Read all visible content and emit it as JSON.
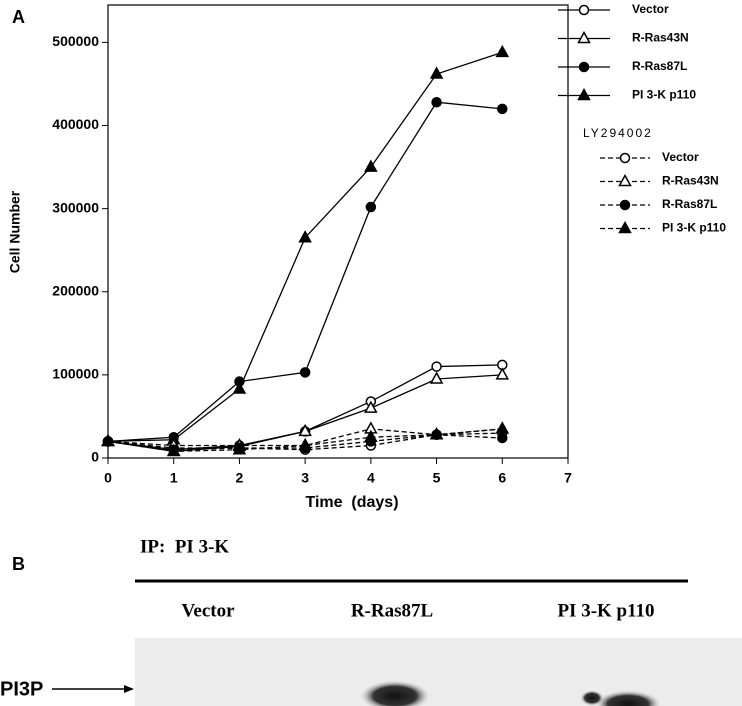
{
  "chart_data": {
    "type": "line",
    "y_label": "Cell Number",
    "x_label": "Time  (days)",
    "x": [
      0,
      1,
      2,
      3,
      4,
      5,
      6
    ],
    "xlim": [
      0,
      7
    ],
    "xticks": [
      0,
      1,
      2,
      3,
      4,
      5,
      6,
      7
    ],
    "ylim": [
      0,
      545000
    ],
    "yticks": [
      0,
      100000,
      200000,
      300000,
      400000,
      500000
    ],
    "legend_group_title": "LY294002",
    "series": [
      {
        "name": "Vector",
        "color": "#000000",
        "marker": "circle-open",
        "dashed": false,
        "values": [
          20000,
          10000,
          15000,
          32000,
          68000,
          110000,
          112000
        ]
      },
      {
        "name": "R-Ras43N",
        "color": "#000000",
        "marker": "triangle-open",
        "dashed": false,
        "values": [
          20000,
          8000,
          14000,
          32000,
          60000,
          95000,
          100000
        ]
      },
      {
        "name": "R-Ras87L",
        "color": "#000000",
        "marker": "circle",
        "dashed": false,
        "values": [
          20000,
          25000,
          92000,
          103000,
          302000,
          428000,
          420000
        ]
      },
      {
        "name": "PI 3-K p110",
        "color": "#000000",
        "marker": "triangle",
        "dashed": false,
        "values": [
          20000,
          22000,
          83000,
          265000,
          350000,
          462000,
          488000
        ]
      },
      {
        "name": "Vector",
        "color": "#000000",
        "marker": "circle-open",
        "dashed": true,
        "values": [
          20000,
          12000,
          12000,
          10000,
          15000,
          28000,
          30000
        ]
      },
      {
        "name": "R-Ras43N",
        "color": "#000000",
        "marker": "triangle-open",
        "dashed": true,
        "values": [
          20000,
          15000,
          15000,
          15000,
          35000,
          28000,
          35000
        ]
      },
      {
        "name": "R-Ras87L",
        "color": "#000000",
        "marker": "circle",
        "dashed": true,
        "values": [
          20000,
          10000,
          12000,
          12000,
          20000,
          28000,
          24000
        ]
      },
      {
        "name": "PI 3-K p110",
        "color": "#000000",
        "marker": "triangle",
        "dashed": true,
        "values": [
          20000,
          8000,
          10000,
          15000,
          25000,
          28000,
          35000
        ]
      }
    ]
  },
  "panel_a_label": "A",
  "panel_b": {
    "label": "B",
    "ip_label": "IP:  PI 3-K",
    "lanes": [
      "Vector",
      "R-Ras87L",
      "PI 3-K p110"
    ],
    "band_label": "PI3P"
  }
}
